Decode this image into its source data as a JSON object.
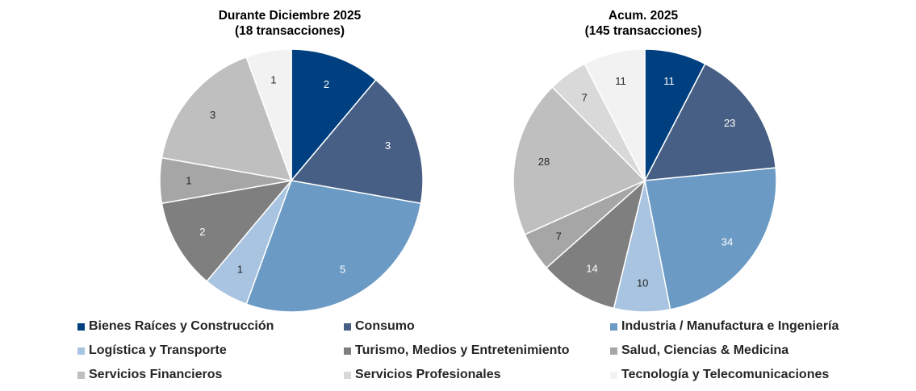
{
  "chart_data": [
    {
      "type": "pie",
      "title": "Durante Diciembre 2025",
      "subtitle": "(18 transacciones)",
      "categories": [
        "Bienes Raíces y Construcción",
        "Consumo",
        "Industria / Manufactura e Ingeniería",
        "Logística y Transporte",
        "Turismo, Medios y Entretenimiento",
        "Salud, Ciencias & Medicina",
        "Servicios Financieros",
        "Servicios Profesionales",
        "Tecnología y Telecomunicaciones"
      ],
      "values": [
        2,
        3,
        5,
        1,
        2,
        1,
        3,
        0,
        1
      ],
      "data_labels": [
        "2",
        "3",
        "5",
        "1",
        "2",
        "1",
        "3",
        "",
        "1"
      ]
    },
    {
      "type": "pie",
      "title": "Acum. 2025",
      "subtitle": "(145 transacciones)",
      "categories": [
        "Bienes Raíces y Construcción",
        "Consumo",
        "Industria / Manufactura e Ingeniería",
        "Logística y Transporte",
        "Turismo, Medios y Entretenimiento",
        "Salud, Ciencias & Medicina",
        "Servicios Financieros",
        "Servicios Profesionales",
        "Tecnología y Telecomunicaciones"
      ],
      "values": [
        11,
        23,
        34,
        10,
        14,
        7,
        28,
        7,
        11
      ],
      "data_labels": [
        "11",
        "23",
        "34",
        "10",
        "14",
        "7",
        "28",
        "7",
        "11"
      ]
    }
  ],
  "legend": {
    "placement": "bottom",
    "items": [
      {
        "label": "Bienes Raíces y Construcción",
        "color": "#004080"
      },
      {
        "label": "Consumo",
        "color": "#475f84"
      },
      {
        "label": "Industria / Manufactura e Ingeniería",
        "color": "#6b9ac4"
      },
      {
        "label": "Logística y Transporte",
        "color": "#a8c4e0"
      },
      {
        "label": "Turismo, Medios y Entretenimiento",
        "color": "#7f7f7f"
      },
      {
        "label": "Salud, Ciencias & Medicina",
        "color": "#a6a6a6"
      },
      {
        "label": "Servicios Financieros",
        "color": "#bfbfbf"
      },
      {
        "label": "Servicios Profesionales",
        "color": "#d9d9d9"
      },
      {
        "label": "Tecnología y Telecomunicaciones",
        "color": "#f2f2f2"
      }
    ]
  },
  "label_colors": {
    "dark_slices": "#ffffff",
    "light_slices": "#262626"
  }
}
